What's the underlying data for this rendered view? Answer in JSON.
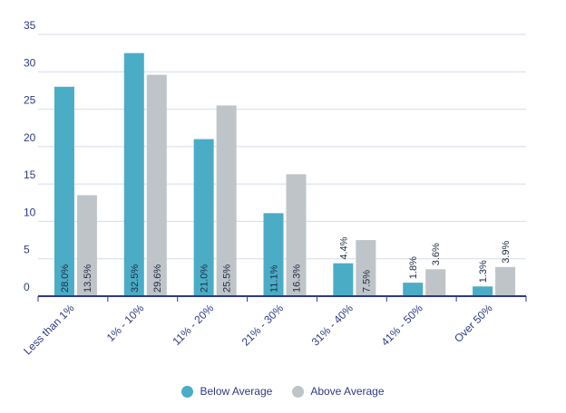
{
  "chart_data": {
    "type": "bar",
    "categories": [
      "Less than 1%",
      "1% - 10%",
      "11% - 20%",
      "21% - 30%",
      "31% - 40%",
      "41% - 50%",
      "Over 50%"
    ],
    "series": [
      {
        "name": "Below Average",
        "values": [
          28.0,
          32.5,
          21.0,
          11.1,
          4.4,
          1.8,
          1.3
        ],
        "labels": [
          "28.0%",
          "32.5%",
          "21.0%",
          "11.1%",
          "4.4%",
          "1.8%",
          "1.3%"
        ],
        "color": "#4bacc6"
      },
      {
        "name": "Above Average",
        "values": [
          13.5,
          29.6,
          25.5,
          16.3,
          7.5,
          3.6,
          3.9
        ],
        "labels": [
          "13.5%",
          "29.6%",
          "25.5%",
          "16.3%",
          "7.5%",
          "3.6%",
          "3.9%"
        ],
        "color": "#bec4c8"
      }
    ],
    "yticks": [
      0,
      5,
      10,
      15,
      20,
      25,
      30,
      35
    ],
    "ylim": [
      0,
      35
    ],
    "grid": true,
    "legend_position": "bottom"
  },
  "colors": {
    "axis": "#2e3a87",
    "grid": "#d6dbe8",
    "text": "#2e3a87"
  }
}
